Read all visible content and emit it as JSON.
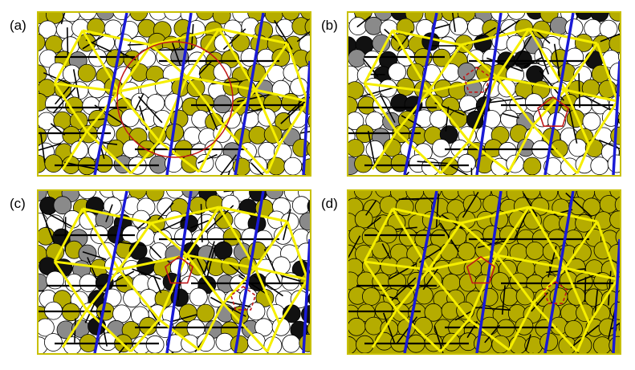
{
  "figure": {
    "panels": [
      {
        "id": "a",
        "label": "(a)",
        "fill": "#ffffff",
        "overlay": "circle"
      },
      {
        "id": "b",
        "label": "(b)",
        "fill": "#ffffff",
        "overlay": "pentagons"
      },
      {
        "id": "c",
        "label": "(c)",
        "fill": "#ffffff",
        "overlay": "pentagons"
      },
      {
        "id": "d",
        "label": "(d)",
        "fill": "#b5ac00",
        "overlay": "pentagons"
      }
    ],
    "colors": {
      "yellow_line": "#f5ee00",
      "blue_line": "#1a1ad6",
      "olive_disk": "#b5ac00",
      "black_disk": "#111111",
      "gray_disk": "#8a8a8a",
      "red_overlay": "#c0181a",
      "frame": "#c8c000"
    }
  }
}
